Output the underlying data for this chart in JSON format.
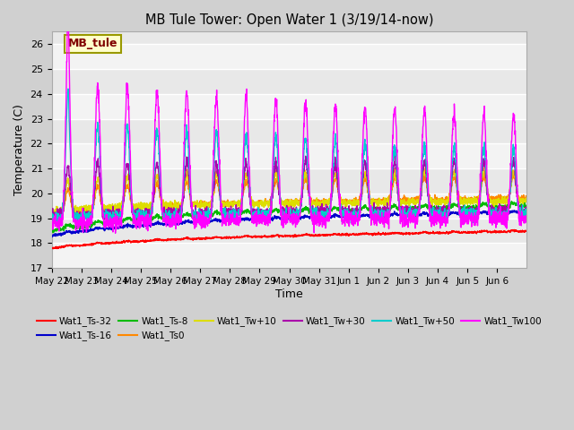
{
  "title": "MB Tule Tower: Open Water 1 (3/19/14-now)",
  "xlabel": "Time",
  "ylabel": "Temperature (C)",
  "ylim": [
    17.0,
    26.5
  ],
  "yticks": [
    17.0,
    18.0,
    19.0,
    20.0,
    21.0,
    22.0,
    23.0,
    24.0,
    25.0,
    26.0
  ],
  "fig_bg_color": "#d0d0d0",
  "plot_bg_color": "#e8e8e8",
  "series_colors": {
    "Wat1_Ts-32": "#ff0000",
    "Wat1_Ts-16": "#0000cc",
    "Wat1_Ts-8": "#00bb00",
    "Wat1_Ts0": "#ff8800",
    "Wat1_Tw+10": "#dddd00",
    "Wat1_Tw+30": "#aa00aa",
    "Wat1_Tw+50": "#00cccc",
    "Wat1_Tw100": "#ff00ff"
  },
  "annotation_text": "MB_tule",
  "annotation_color": "#800000",
  "annotation_bg": "#ffffcc",
  "annotation_border": "#999900",
  "tick_labels": [
    "May 22",
    "May 23",
    "May 24",
    "May 25",
    "May 26",
    "May 27",
    "May 28",
    "May 29",
    "May 30",
    "May 31",
    "Jun 1",
    "Jun 2",
    "Jun 3",
    "Jun 4",
    "Jun 5",
    "Jun 6"
  ]
}
